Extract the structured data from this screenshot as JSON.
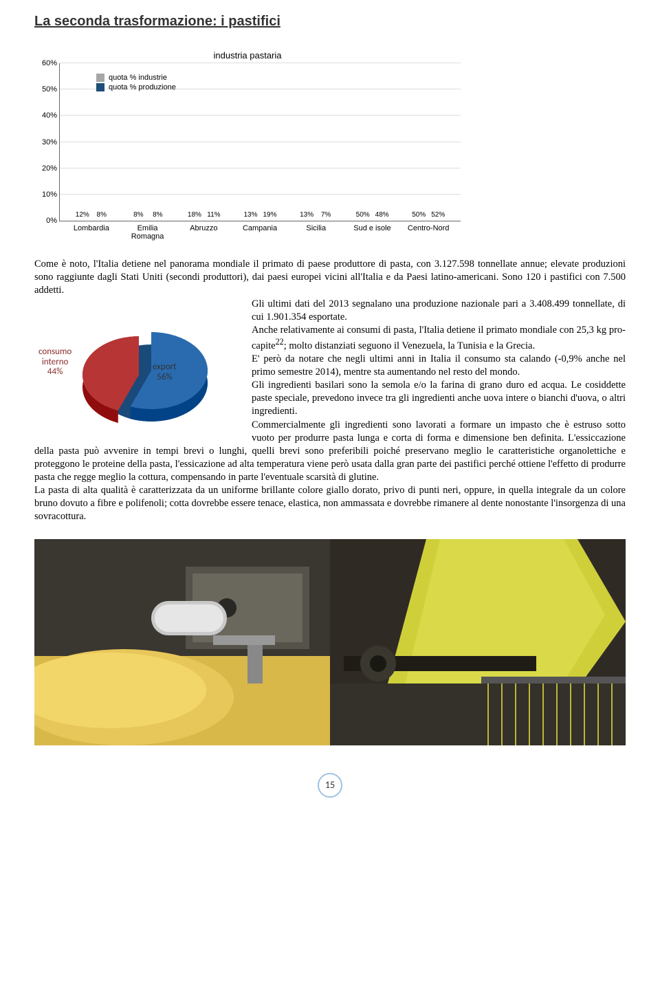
{
  "title": "La seconda trasformazione: i pastifici",
  "bar_chart": {
    "title": "industria pastaria",
    "ylim_max": 60,
    "ytick_step": 10,
    "legend": [
      {
        "label": "quota % industrie",
        "color": "#a6a6a6"
      },
      {
        "label": "quota % produzione",
        "color": "#1f4e79"
      }
    ],
    "categories": [
      "Lombardia",
      "Emilia\nRomagna",
      "Abruzzo",
      "Campania",
      "Sicilia",
      "Sud e isole",
      "Centro-Nord"
    ],
    "series_industrie": [
      12,
      8,
      18,
      13,
      13,
      50,
      50
    ],
    "series_produzione": [
      8,
      8,
      11,
      19,
      7,
      48,
      52
    ],
    "bar_colors": {
      "industrie": "#a6a6a6",
      "produzione": "#1f4e79"
    },
    "background_color": "#ffffff",
    "grid_color": "#dddddd"
  },
  "pie_chart": {
    "slices": [
      {
        "label": "export",
        "value": 56,
        "color": "#2a6bb0"
      },
      {
        "label": "consumo interno",
        "value": 44,
        "color": "#b83535"
      }
    ],
    "label_export": "export\n56%",
    "label_consumo": "consumo\ninterno\n44%"
  },
  "body": {
    "p1": "Come è noto, l'Italia detiene nel panorama mondiale il primato di paese produttore di pasta, con 3.127.598 tonnellate annue; elevate produzioni sono raggiunte dagli Stati Uniti (secondi produttori), dai paesi europei vicini all'Italia e da Paesi latino-americani. Sono 120 i pastifici con 7.500 addetti.",
    "p2": "Gli ultimi dati del 2013 segnalano una produzione nazionale pari a 3.408.499 tonnellate, di cui 1.901.354 esportate.",
    "p3": "Anche relativamente ai consumi di pasta, l'Italia detiene il primato mondiale con 25,3 kg pro-capite",
    "p3_note": "22",
    "p3b": "; molto distanziati seguono il Venezuela, la Tunisia e la Grecia.",
    "p4": "E' però da notare che negli ultimi anni in Italia il consumo sta calando (-0,9% anche nel primo semestre 2014), mentre sta aumentando nel resto del mondo.",
    "p5": "Gli ingredienti basilari sono la semola e/o la farina di grano duro ed acqua. Le cosiddette paste speciale, prevedono invece tra gli ingredienti anche uova intere o bianchi d'uova, o altri ingredienti.",
    "p6": "Commercialmente gli ingredienti sono lavorati a formare un impasto che è estruso sotto vuoto per produrre pasta lunga e corta di forma e dimensione ben definita. L'essiccazione della pasta può avvenire in tempi brevi o lunghi, quelli brevi sono preferibili poiché preservano meglio le caratteristiche organolettiche e proteggono le proteine della pasta, l'essicazione ad alta temperatura viene però usata dalla gran parte dei pastifici perché ottiene l'effetto di produrre pasta che regge meglio la cottura, compensando in parte l'eventuale scarsità di glutine.",
    "p7": "La pasta di alta qualità è caratterizzata da un uniforme brillante colore giallo dorato, privo di punti neri, oppure, in quella integrale da un colore bruno dovuto a fibre e polifenoli; cotta dovrebbe essere tenace, elastica, non ammassata e dovrebbe rimanere al dente nonostante l'insorgenza di una sovracottura."
  },
  "page_number": "15"
}
